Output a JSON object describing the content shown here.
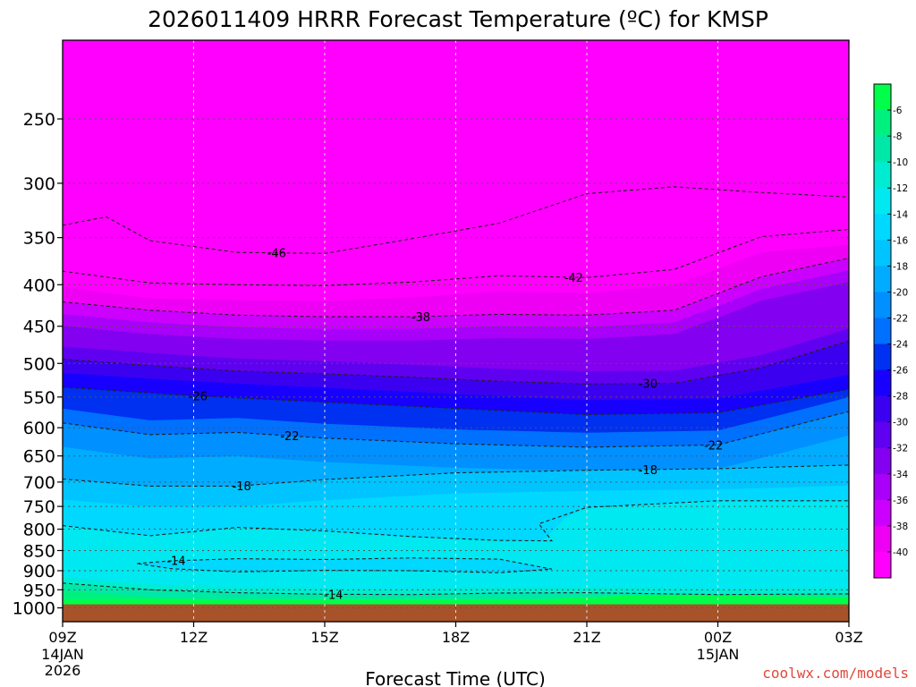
{
  "chart_data": {
    "type": "heatmap",
    "title": "2026011409 HRRR Forecast Temperature (ºC) for KMSP",
    "xlabel": "Forecast Time (UTC)",
    "x_ticks": [
      {
        "label": "09Z",
        "sub": [
          "14JAN",
          "2026"
        ]
      },
      {
        "label": "12Z",
        "sub": []
      },
      {
        "label": "15Z",
        "sub": []
      },
      {
        "label": "18Z",
        "sub": []
      },
      {
        "label": "21Z",
        "sub": []
      },
      {
        "label": "00Z",
        "sub": [
          "15JAN"
        ]
      },
      {
        "label": "03Z",
        "sub": []
      }
    ],
    "x_hours": [
      0,
      3,
      6,
      9,
      12,
      15,
      18
    ],
    "y_ticks": [
      250,
      300,
      350,
      400,
      450,
      500,
      550,
      600,
      650,
      700,
      750,
      800,
      850,
      900,
      950,
      1000
    ],
    "y_range_hPa": [
      200,
      1040
    ],
    "y_scale": "log",
    "grid": true,
    "legend": {
      "position": "right",
      "levels": [
        -6,
        -8,
        -10,
        -12,
        -14,
        -16,
        -18,
        -20,
        -22,
        -24,
        -26,
        -28,
        -30,
        -32,
        -34,
        -36,
        -38,
        -40
      ],
      "colors": [
        "#00ff4a",
        "#00f080",
        "#00e8a8",
        "#00ecd0",
        "#00e8f0",
        "#00d8ff",
        "#00c4ff",
        "#00acff",
        "#0090ff",
        "#0070ff",
        "#0030f0",
        "#1800ff",
        "#3c00f0",
        "#6000f0",
        "#8400f0",
        "#a800f8",
        "#cc00ff",
        "#ee00f4",
        "#ff00ff"
      ]
    },
    "surface_color": "#a8522a",
    "contours": [
      {
        "value": -46,
        "hours": [
          0,
          1,
          2,
          4,
          6,
          8,
          10,
          12,
          14,
          16,
          18
        ],
        "p": [
          338,
          330,
          353,
          365,
          366,
          351,
          336,
          309,
          303,
          308,
          312
        ],
        "label": "-46",
        "label_hour": 4.9
      },
      {
        "value": -42,
        "hours": [
          0,
          2,
          4,
          6,
          8,
          10,
          12,
          14,
          16,
          18
        ],
        "p": [
          385,
          398,
          400,
          401,
          397,
          390,
          392,
          383,
          349,
          342
        ],
        "label": "-42",
        "label_hour": 11.7
      },
      {
        "value": -38,
        "hours": [
          0,
          2,
          4,
          6,
          8,
          10,
          12,
          14,
          16,
          18
        ],
        "p": [
          420,
          430,
          436,
          438,
          438,
          435,
          436,
          430,
          391,
          371
        ],
        "label": "-38",
        "label_hour": 8.2
      },
      {
        "value": -30,
        "hours": [
          0,
          2,
          4,
          6,
          8,
          10,
          12,
          14,
          16,
          18
        ],
        "p": [
          494,
          503,
          511,
          515,
          520,
          526,
          530,
          529,
          506,
          469
        ],
        "label": "-30",
        "label_hour": 13.4
      },
      {
        "value": -26,
        "hours": [
          0,
          3,
          6,
          9,
          12,
          15,
          18
        ],
        "p": [
          535,
          548,
          558,
          568,
          578,
          575,
          538
        ],
        "label": "-26",
        "label_hour": 3.1
      },
      {
        "value": -22,
        "hours": [
          0,
          2,
          4,
          6,
          9,
          12,
          15,
          18
        ],
        "p": [
          592,
          612,
          608,
          618,
          628,
          634,
          630,
          573
        ],
        "label": "-22",
        "label_hour": 5.2,
        "label_hour2": 14.9
      },
      {
        "value": -18,
        "hours": [
          0,
          2,
          4,
          6,
          9,
          12,
          15,
          18
        ],
        "p": [
          694,
          708,
          708,
          695,
          682,
          677,
          674,
          667
        ],
        "label": "-18",
        "label_hour": 4.1,
        "label_hour2": 13.4
      },
      {
        "value": -14,
        "hours": [
          0,
          2,
          4,
          6,
          8,
          10,
          11.2,
          10.9,
          12,
          15,
          18
        ],
        "p": [
          792,
          815,
          796,
          804,
          817,
          826,
          827,
          788,
          752,
          738,
          738
        ],
        "label": "",
        "label_hour": 0
      },
      {
        "value": -14,
        "hours": [
          1.7,
          2.5,
          4,
          6,
          8,
          10,
          11.2,
          10,
          8,
          6,
          4,
          2.5
        ],
        "p": [
          882,
          875,
          870,
          872,
          868,
          871,
          896,
          905,
          900,
          899,
          903,
          895
        ],
        "label": "-14",
        "label_hour": 2.6,
        "closed": true
      },
      {
        "value": -14,
        "hours": [
          0,
          2,
          4,
          6,
          8,
          10,
          12,
          15,
          18
        ],
        "p": [
          932,
          950,
          958,
          962,
          963,
          959,
          958,
          963,
          961
        ],
        "label": "-14",
        "label_hour": 6.2
      }
    ]
  },
  "credit": "coolwx.com/models"
}
